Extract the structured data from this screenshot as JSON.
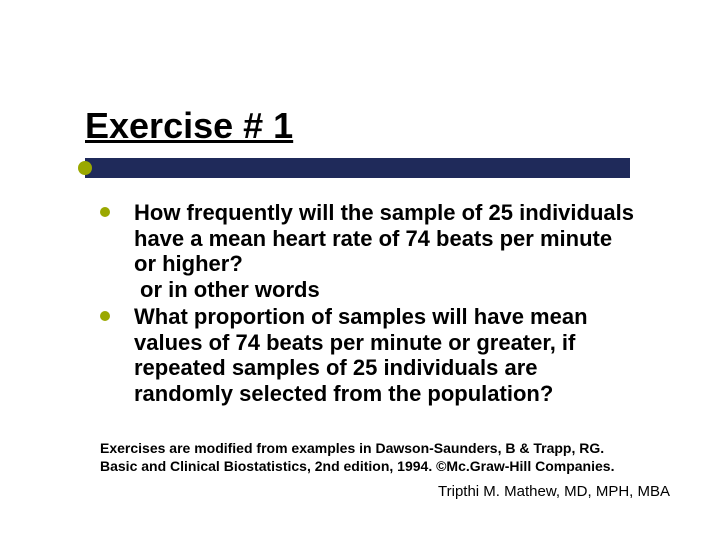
{
  "title": "Exercise # 1",
  "bullets": [
    {
      "text": "How frequently will the sample of 25 individuals  have a mean heart rate of 74 beats per minute or higher?",
      "connector": "or  in other words"
    },
    {
      "text": "What proportion of samples will have mean values of  74 beats per minute or greater, if repeated samples of 25 individuals are randomly selected from the population?"
    }
  ],
  "footnote": "Exercises are modified from examples in Dawson-Saunders, B & Trapp, RG. Basic and Clinical Biostatistics, 2nd edition, 1994. ©Mc.Graw-Hill Companies.",
  "author": "Tripthi M. Mathew, MD, MPH, MBA",
  "colors": {
    "accent": "#9aa800",
    "bar": "#1f2a5a",
    "text": "#000000",
    "background": "#ffffff"
  },
  "typography": {
    "title_fontsize": 36,
    "body_fontsize": 22,
    "footnote_fontsize": 14,
    "author_fontsize": 15,
    "font_family": "Arial"
  }
}
